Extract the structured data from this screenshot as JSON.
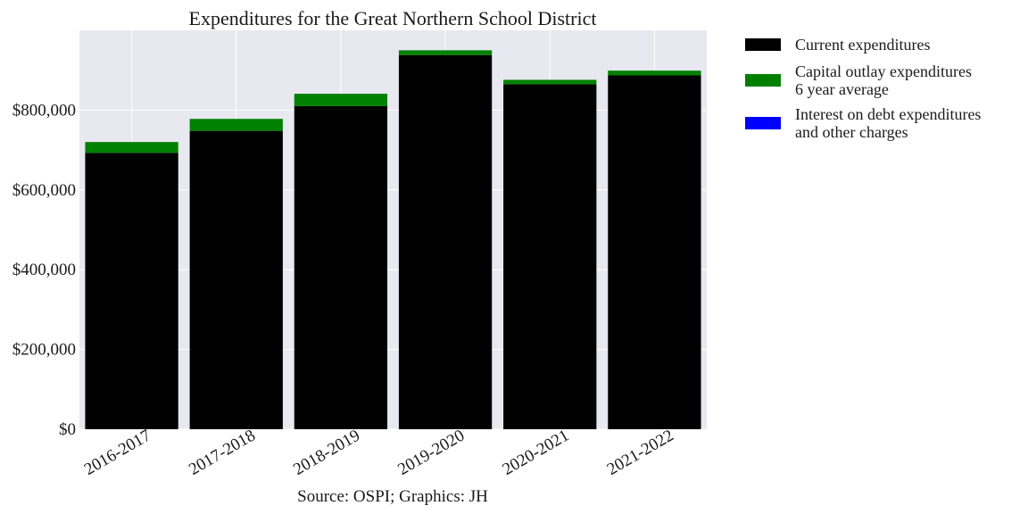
{
  "chart_data": {
    "type": "bar",
    "stacked": true,
    "title": "Expenditures for the Great Northern School District",
    "xlabel": "Source: OSPI; Graphics: JH",
    "ylabel": "",
    "categories": [
      "2016-2017",
      "2017-2018",
      "2018-2019",
      "2019-2020",
      "2020-2021",
      "2021-2022"
    ],
    "series": [
      {
        "name": "Current expenditures",
        "color": "#000000",
        "values": [
          693000,
          748000,
          810000,
          938000,
          865000,
          887000
        ]
      },
      {
        "name": "Capital outlay expenditures\n6 year average",
        "color": "#008000",
        "values": [
          27000,
          30000,
          31000,
          12000,
          11000,
          12000
        ]
      },
      {
        "name": "Interest on debt expenditures\nand other charges",
        "color": "#0000ff",
        "values": [
          0,
          0,
          0,
          0,
          0,
          0
        ]
      }
    ],
    "ylim": [
      0,
      1000000
    ],
    "yticks": [
      0,
      200000,
      400000,
      600000,
      800000
    ],
    "ytick_labels": [
      "$0",
      "$200,000",
      "$400,000",
      "$600,000",
      "$800,000"
    ],
    "grid": true,
    "legend_position": "outside-right",
    "plot_background": "#e8e8f0"
  }
}
